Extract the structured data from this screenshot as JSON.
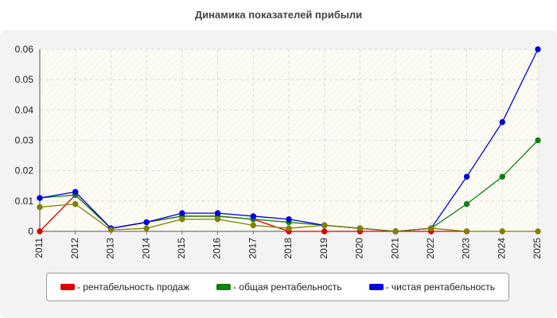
{
  "chart_data": {
    "type": "line",
    "title": "Динамика показателей прибыли",
    "xlabel": "",
    "ylabel": "",
    "ylim": [
      0,
      0.06
    ],
    "yticks": [
      0,
      0.01,
      0.02,
      0.03,
      0.04,
      0.05,
      0.06
    ],
    "ytick_labels": [
      "0",
      "0.01",
      "0.02",
      "0.03",
      "0.04",
      "0.05",
      "0.06"
    ],
    "x": [
      "2011",
      "2012",
      "2013",
      "2014",
      "2015",
      "2016",
      "2017",
      "2018",
      "2019",
      "2020",
      "2021",
      "2022",
      "2023",
      "2024",
      "2025"
    ],
    "grid": true,
    "legend_position": "bottom",
    "series": [
      {
        "name": "рентабельность продаж",
        "label": "- рентабельность продаж",
        "color": "#e00000",
        "values": [
          0,
          0.012,
          0.001,
          0.003,
          0.005,
          0.005,
          0.004,
          0,
          0,
          0,
          0,
          0,
          0,
          null,
          null
        ]
      },
      {
        "name": "общая рентабельность",
        "label": "- общая рентабельность",
        "color": "#108010",
        "values": [
          0.011,
          0.012,
          0.001,
          0.003,
          0.005,
          0.005,
          0.004,
          0.003,
          0.002,
          0.001,
          0,
          0.001,
          0.009,
          0.018,
          0.03
        ]
      },
      {
        "name": "чистая рентабельность",
        "label": "- чистая рентабельность",
        "color": "#0000e0",
        "values": [
          0.011,
          0.013,
          0.001,
          0.003,
          0.006,
          0.006,
          0.005,
          0.004,
          0.002,
          0.001,
          0,
          0.001,
          0.018,
          0.036,
          0.06
        ]
      },
      {
        "name": "",
        "label": "",
        "color": "#808000",
        "values": [
          0.008,
          0.009,
          0.0005,
          0.001,
          0.004,
          0.004,
          0.002,
          0.001,
          0.002,
          0.001,
          0,
          0.001,
          0,
          0,
          0
        ]
      }
    ]
  }
}
